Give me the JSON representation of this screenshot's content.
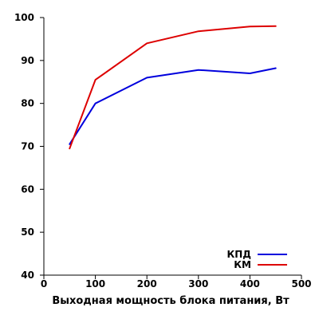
{
  "chart_data": {
    "type": "line",
    "title": "",
    "xlabel": "Выходная мощность блока питания, Вт",
    "ylabel": "",
    "xlim": [
      0,
      500
    ],
    "ylim": [
      40,
      100
    ],
    "xticks": [
      0,
      100,
      200,
      300,
      400,
      500
    ],
    "yticks": [
      40,
      50,
      60,
      70,
      80,
      90,
      100
    ],
    "grid": false,
    "legend_position": "bottom-right",
    "series": [
      {
        "name": "КПД",
        "color": "#0000dd",
        "x": [
          50,
          100,
          200,
          300,
          400,
          450
        ],
        "y": [
          70.5,
          80,
          86,
          87.8,
          87,
          88.2
        ]
      },
      {
        "name": "КМ",
        "color": "#dd0000",
        "x": [
          50,
          100,
          200,
          300,
          400,
          450
        ],
        "y": [
          69.5,
          85.5,
          94,
          96.8,
          97.9,
          98
        ]
      }
    ]
  }
}
